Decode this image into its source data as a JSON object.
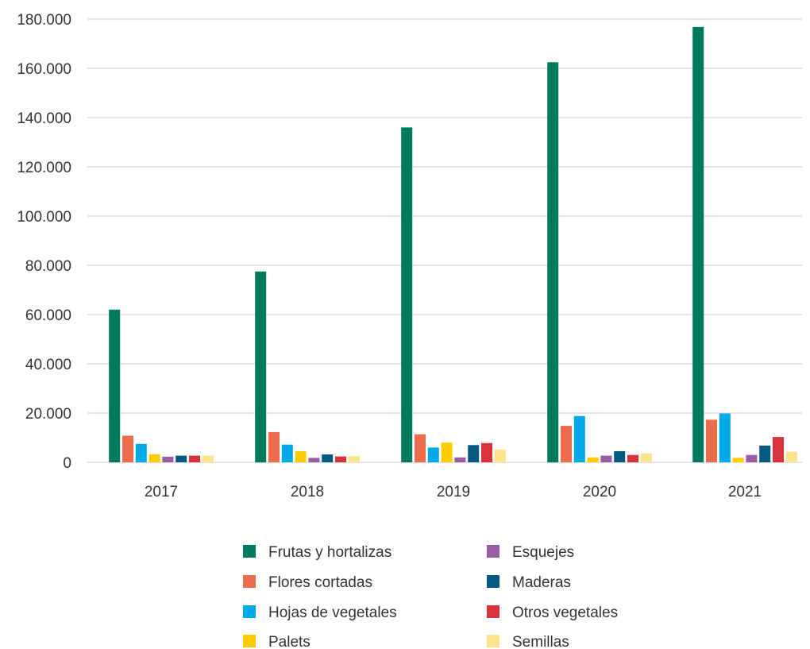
{
  "chart_data": {
    "type": "bar",
    "title": "",
    "xlabel": "",
    "ylabel": "",
    "categories": [
      "2017",
      "2018",
      "2019",
      "2020",
      "2021"
    ],
    "ylim": [
      0,
      180000
    ],
    "yticks": [
      0,
      20000,
      40000,
      60000,
      80000,
      100000,
      120000,
      140000,
      160000,
      180000
    ],
    "ytick_labels": [
      "0",
      "20.000",
      "40.000",
      "60.000",
      "80.000",
      "100.000",
      "120.000",
      "140.000",
      "160.000",
      "180.000"
    ],
    "grid": true,
    "legend_position": "bottom",
    "series": [
      {
        "name": "Frutas y hortalizas",
        "color": "#007a5e",
        "values": [
          62000,
          77500,
          136000,
          162500,
          176800
        ]
      },
      {
        "name": "Flores cortadas",
        "color": "#eb6b4a",
        "values": [
          10800,
          12300,
          11400,
          14800,
          17300
        ]
      },
      {
        "name": "Hojas de vegetales",
        "color": "#00a9e8",
        "values": [
          7500,
          7200,
          6000,
          18800,
          19800
        ]
      },
      {
        "name": "Palets",
        "color": "#ffcc00",
        "values": [
          3300,
          4500,
          8000,
          2000,
          1800
        ]
      },
      {
        "name": "Esquejes",
        "color": "#9a5ca4",
        "values": [
          2300,
          1800,
          2000,
          2700,
          3000
        ]
      },
      {
        "name": "Maderas",
        "color": "#045a83",
        "values": [
          2700,
          3200,
          7000,
          4500,
          6800
        ]
      },
      {
        "name": "Otros vegetales",
        "color": "#d8323a",
        "values": [
          2700,
          2400,
          7800,
          3000,
          10300
        ]
      },
      {
        "name": "Semillas",
        "color": "#fde38a",
        "values": [
          2700,
          2500,
          5200,
          3600,
          4300
        ]
      }
    ]
  }
}
